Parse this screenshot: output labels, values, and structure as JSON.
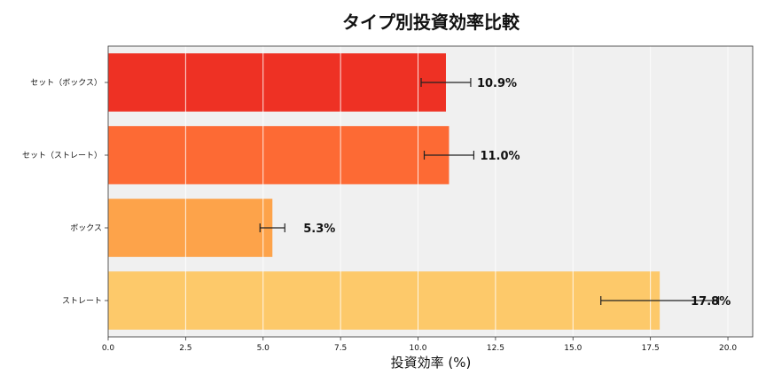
{
  "chart_data": {
    "type": "bar",
    "orientation": "horizontal",
    "title": "タイプ別投資効率比較",
    "xlabel": "投資効率 (%)",
    "ylabel": "",
    "categories": [
      "ストレート",
      "ボックス",
      "セット（ストレート）",
      "セット（ボックス）"
    ],
    "values": [
      17.8,
      5.3,
      11.0,
      10.9
    ],
    "errors": [
      1.9,
      0.4,
      0.8,
      0.8
    ],
    "data_labels": [
      "17.8%",
      "5.3%",
      "11.0%",
      "10.9%"
    ],
    "colors": [
      "#FDC96A",
      "#FDA34A",
      "#FD6A34",
      "#EE3124"
    ],
    "xlim": [
      0,
      20.8
    ],
    "xticks": [
      0.0,
      2.5,
      5.0,
      7.5,
      10.0,
      12.5,
      15.0,
      17.5,
      20.0
    ],
    "xtick_labels": [
      "0.0",
      "2.5",
      "5.0",
      "7.5",
      "10.0",
      "12.5",
      "15.0",
      "17.5",
      "20.0"
    ],
    "grid": true,
    "background": "#F0F0F0",
    "legend": "none"
  }
}
